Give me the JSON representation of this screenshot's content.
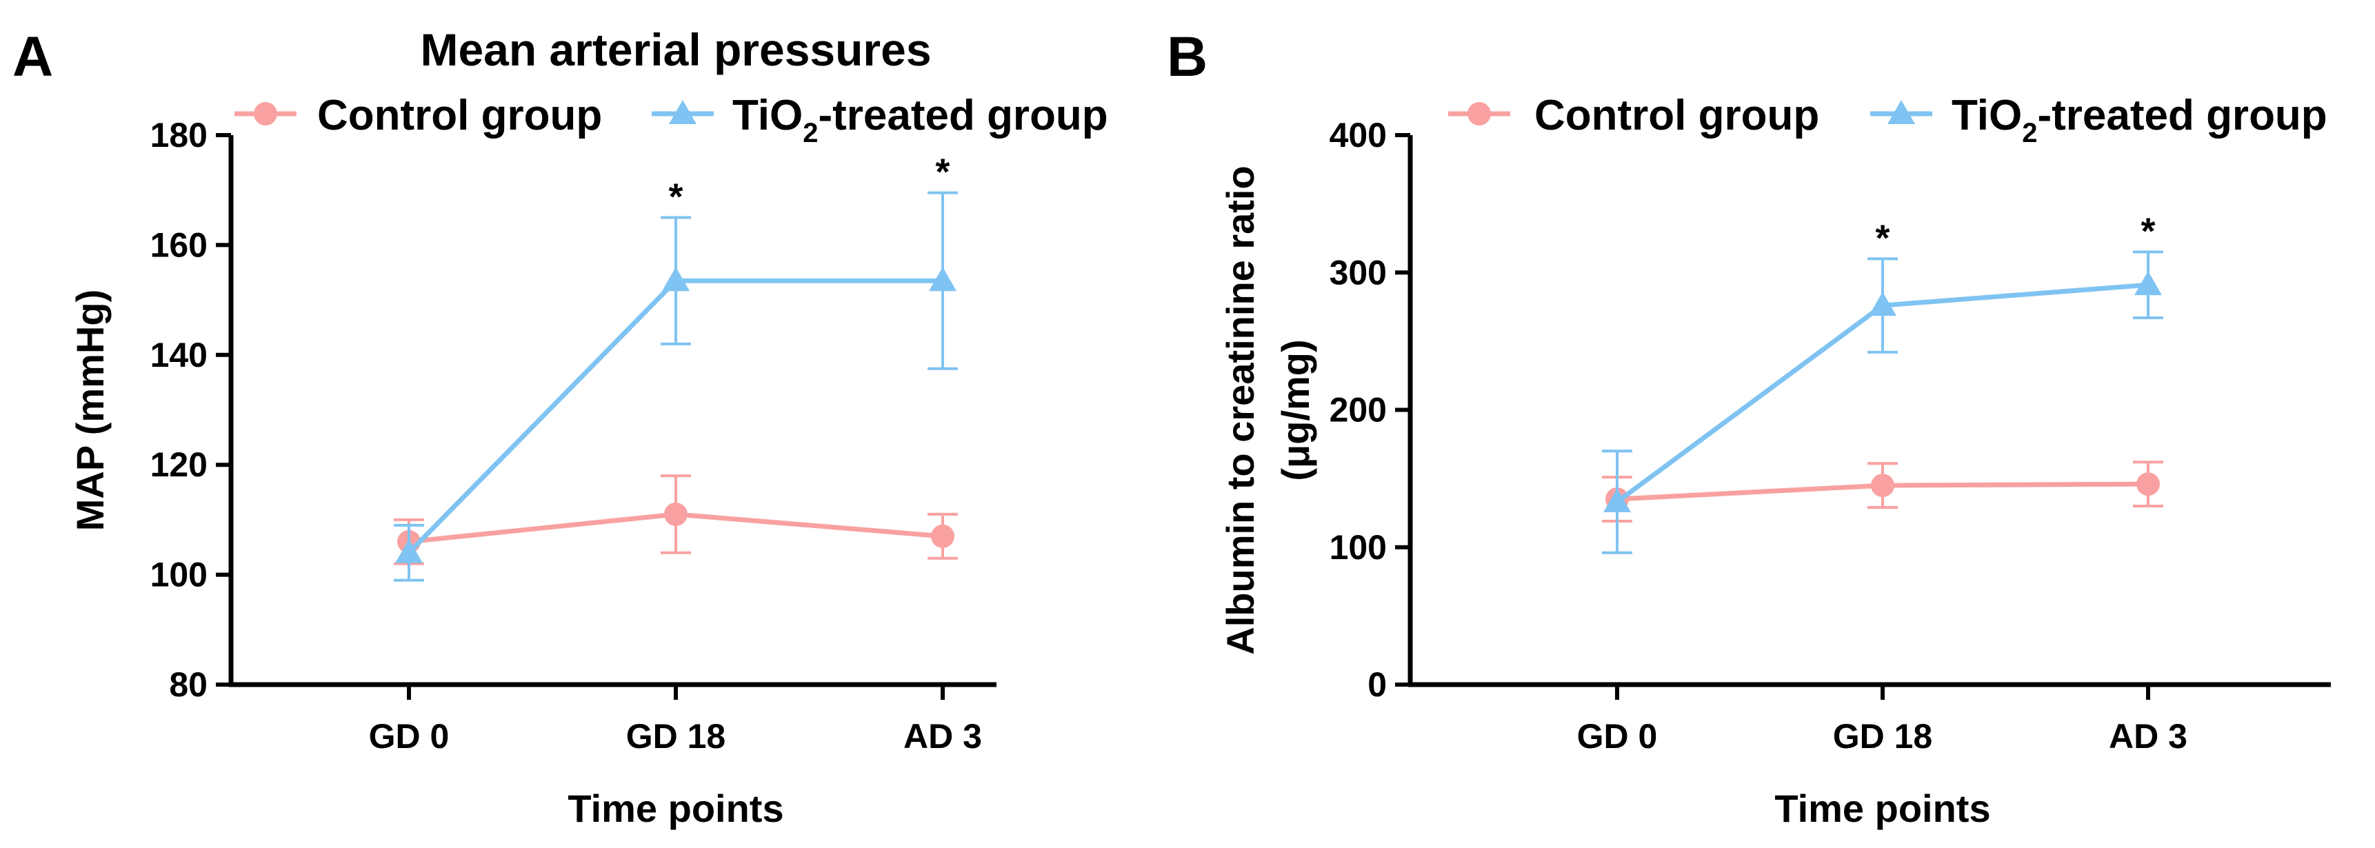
{
  "chart_data": [
    {
      "type": "line",
      "panel": "A",
      "title": "Mean arterial pressures",
      "categories": [
        "GD 0",
        "GD 18",
        "AD 3"
      ],
      "xlabel": "Time points",
      "ylabel": "MAP (mmHg)",
      "ylim": [
        80,
        180
      ],
      "yticks": [
        80,
        100,
        120,
        140,
        160,
        180
      ],
      "legend_position": "top",
      "series": [
        {
          "name": "Control group",
          "color": "#f9a1a1",
          "marker": "circle",
          "values": [
            106,
            111,
            107
          ],
          "errors": [
            4,
            7,
            4
          ]
        },
        {
          "name": "TiO",
          "subscript": "2",
          "suffix": "-treated group",
          "color": "#7fc3f2",
          "marker": "triangle",
          "values": [
            104,
            153.5,
            153.5
          ],
          "errors": [
            5,
            11.5,
            16
          ]
        }
      ],
      "annotations": [
        {
          "category": "GD 18",
          "text": "*"
        },
        {
          "category": "AD 3",
          "text": "*"
        }
      ]
    },
    {
      "type": "line",
      "panel": "B",
      "title": "",
      "categories": [
        "GD 0",
        "GD 18",
        "AD 3"
      ],
      "xlabel": "Time points",
      "ylabel": "Albumin to creatinine ratio",
      "ylabel2": "(μg/mg)",
      "ylim": [
        0,
        400
      ],
      "yticks": [
        0,
        100,
        200,
        300,
        400
      ],
      "legend_position": "top",
      "series": [
        {
          "name": "Control group",
          "color": "#f9a1a1",
          "marker": "circle",
          "values": [
            135,
            145,
            146
          ],
          "errors": [
            16,
            16,
            16
          ]
        },
        {
          "name": "TiO",
          "subscript": "2",
          "suffix": "-treated group",
          "color": "#7fc3f2",
          "marker": "triangle",
          "values": [
            133,
            276,
            291
          ],
          "errors": [
            37,
            34,
            24
          ]
        }
      ],
      "annotations": [
        {
          "category": "GD 18",
          "text": "*"
        },
        {
          "category": "AD 3",
          "text": "*"
        }
      ]
    }
  ]
}
